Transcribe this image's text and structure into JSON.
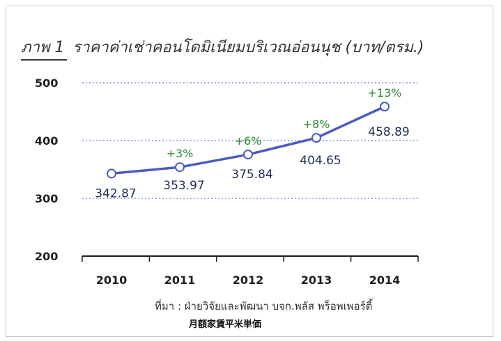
{
  "title_prefix": "ภาพ 1",
  "title_text": "ราคาค่าเช่าคอนโดมิเนียมบริเวณอ่อนนุช (บาท/ตรม.)",
  "source": "ที่มา : ฝ่ายวิจัยและพัฒนา บจก.พลัส พร็อพเพอร์ตี้",
  "caption": "月額家賃平米単価",
  "chart_data": {
    "type": "line",
    "title": "ภาพ 1 ราคาค่าเช่าคอนโดมิเนียมบริเวณอ่อนนุช (บาท/ตรม.)",
    "xlabel": "",
    "ylabel": "",
    "categories": [
      "2010",
      "2011",
      "2012",
      "2013",
      "2014"
    ],
    "series": [
      {
        "values": [
          342.87,
          353.97,
          375.84,
          404.65,
          458.89
        ]
      }
    ],
    "value_labels": [
      "342.87",
      "353.97",
      "375.84",
      "404.65",
      "458.89"
    ],
    "growth_labels": [
      "",
      "+3%",
      "+6%",
      "+8%",
      "+13%"
    ],
    "ylim": [
      200,
      500
    ],
    "yticks": [
      200,
      300,
      400,
      500
    ],
    "grid": "horizontal dotted",
    "line_color": "#4a5bc0",
    "growth_color": "#2f8a2f",
    "label_color": "#1f2d5c"
  }
}
